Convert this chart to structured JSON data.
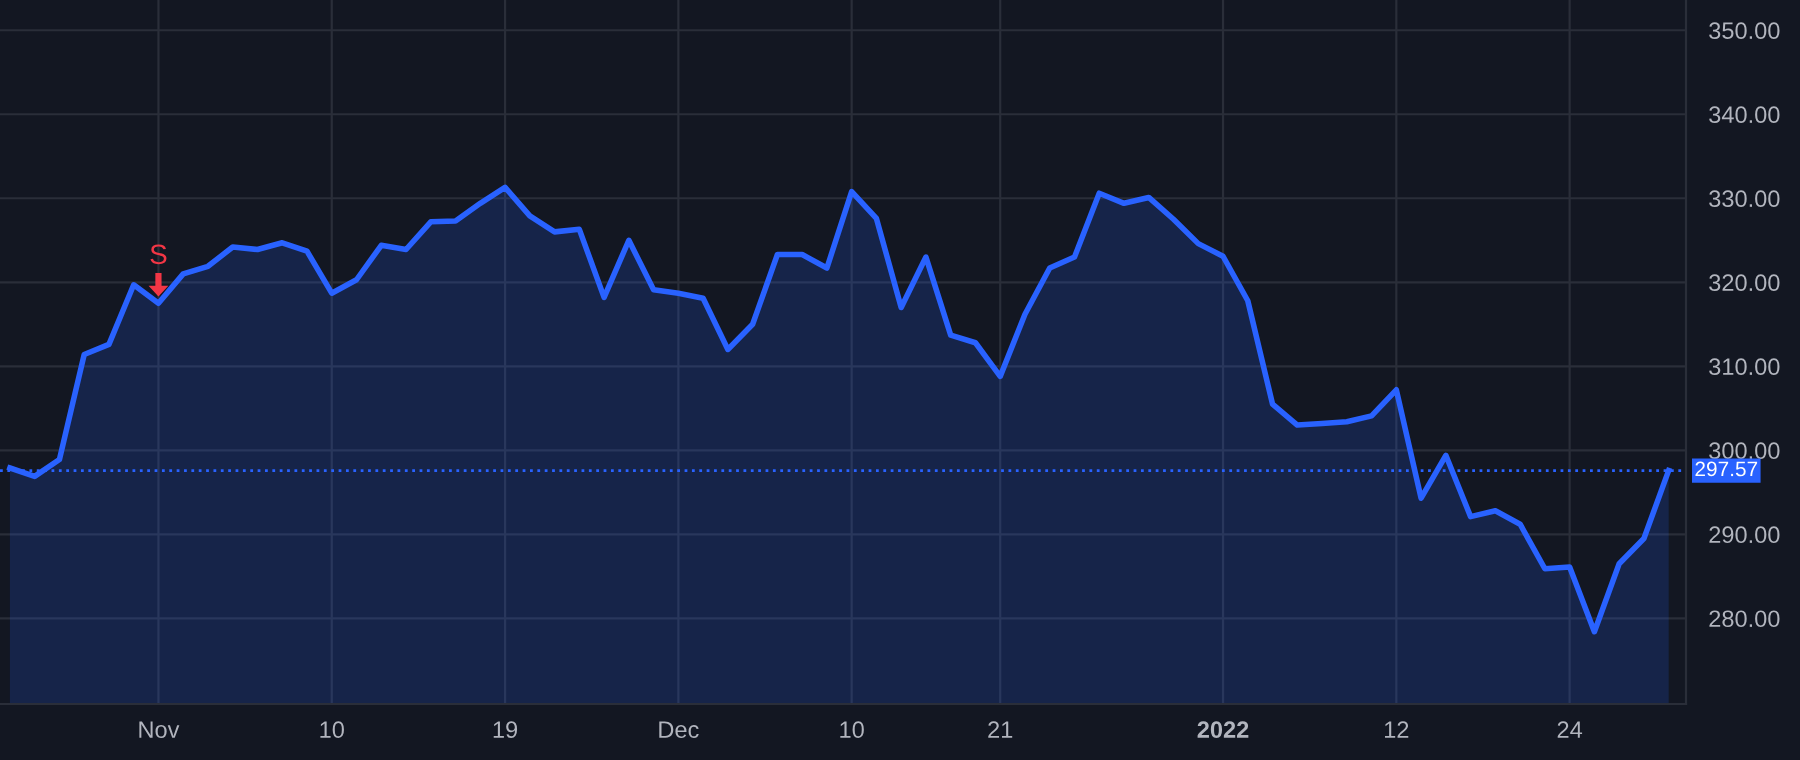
{
  "chart_data": {
    "type": "area",
    "categories": [
      null,
      null,
      null,
      null,
      null,
      null,
      "Nov",
      null,
      null,
      null,
      null,
      null,
      null,
      "10",
      null,
      null,
      null,
      null,
      null,
      null,
      "19",
      null,
      null,
      null,
      null,
      null,
      null,
      "Dec",
      null,
      null,
      null,
      null,
      null,
      null,
      "10",
      null,
      null,
      null,
      null,
      null,
      "21",
      null,
      null,
      null,
      null,
      null,
      null,
      null,
      null,
      "2022",
      null,
      null,
      null,
      null,
      null,
      null,
      "12",
      null,
      null,
      null,
      null,
      null,
      null,
      "24",
      null,
      null,
      null,
      null
    ],
    "series": [
      {
        "color": "#2962ff",
        "values": [
          297.9,
          296.9,
          298.9,
          311.4,
          312.6,
          319.7,
          317.5,
          321.0,
          321.9,
          324.2,
          323.9,
          324.7,
          323.7,
          318.7,
          320.3,
          324.4,
          323.9,
          327.2,
          327.3,
          329.4,
          331.3,
          327.9,
          326.0,
          326.3,
          318.2,
          325.0,
          319.1,
          318.7,
          318.1,
          312.0,
          315.0,
          323.3,
          323.3,
          321.7,
          330.8,
          327.6,
          317.0,
          323.0,
          313.7,
          312.8,
          308.8,
          316.2,
          321.7,
          323.0,
          330.6,
          329.4,
          330.1,
          327.5,
          324.6,
          323.1,
          317.8,
          305.5,
          303.0,
          303.2,
          303.4,
          304.1,
          307.2,
          294.3,
          299.4,
          292.1,
          292.8,
          291.2,
          285.9,
          286.1,
          278.4,
          286.5,
          289.5,
          297.6
        ]
      }
    ],
    "ylim": [
      269.8,
      353.6
    ],
    "yticks": [
      {
        "value": 280,
        "label": "280.00"
      },
      {
        "value": 290,
        "label": "290.00"
      },
      {
        "value": 300,
        "label": "300.00"
      },
      {
        "value": 310,
        "label": "310.00"
      },
      {
        "value": 320,
        "label": "320.00"
      },
      {
        "value": 330,
        "label": "330.00"
      },
      {
        "value": 340,
        "label": "340.00"
      },
      {
        "value": 350,
        "label": "350.00"
      }
    ],
    "ref_lines": [
      {
        "axis": "y",
        "value": 297.57,
        "label": "297.57",
        "color": "#2962ff",
        "line_style": "dotted"
      }
    ],
    "annotations": [
      {
        "text": "S",
        "x": "Nov",
        "y": 317.5
      }
    ],
    "grid": true,
    "marker": "none",
    "line_style": "solid"
  }
}
